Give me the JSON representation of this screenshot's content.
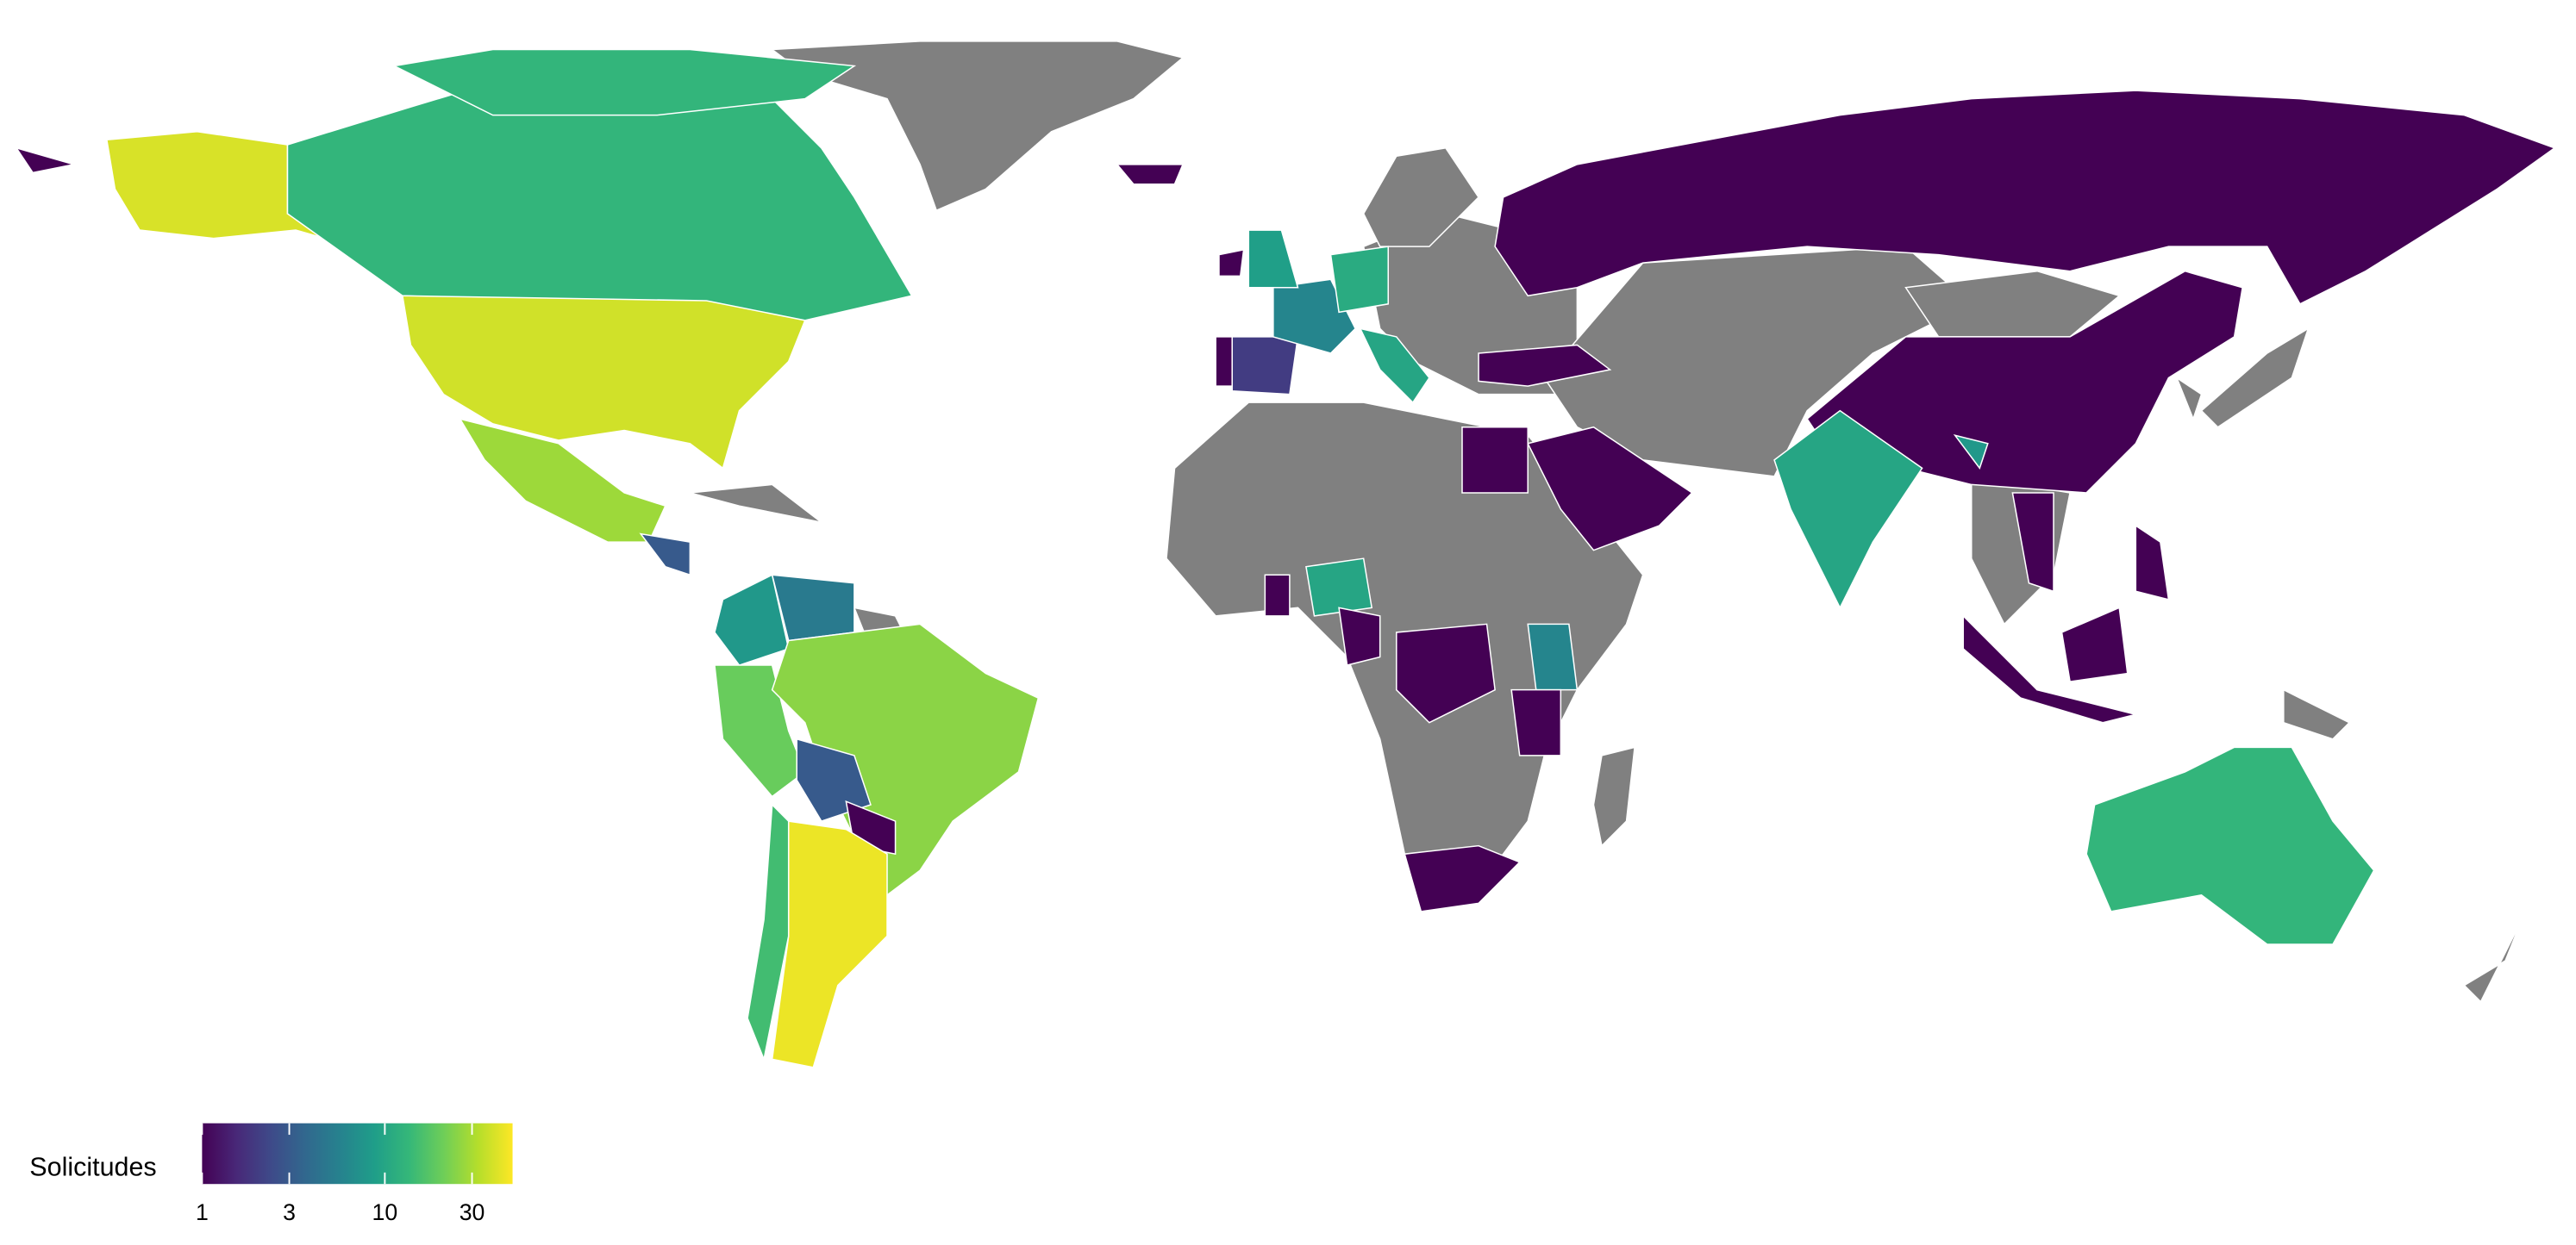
{
  "legend": {
    "title": "Solicitudes",
    "ticks": [
      1,
      3,
      10,
      30
    ],
    "limits": [
      1,
      50
    ],
    "scale": "log",
    "palette": "viridis"
  },
  "regions": {
    "values": [
      40,
      13,
      13,
      38,
      28,
      3,
      8,
      5,
      20,
      25,
      3,
      1,
      45,
      15,
      1,
      1,
      10,
      1,
      1,
      1,
      2,
      1,
      6,
      9,
      1,
      11,
      10,
      10,
      6,
      1,
      1,
      1,
      1,
      1,
      1,
      1,
      1,
      1,
      13,
      8,
      1,
      1
    ]
  }
}
